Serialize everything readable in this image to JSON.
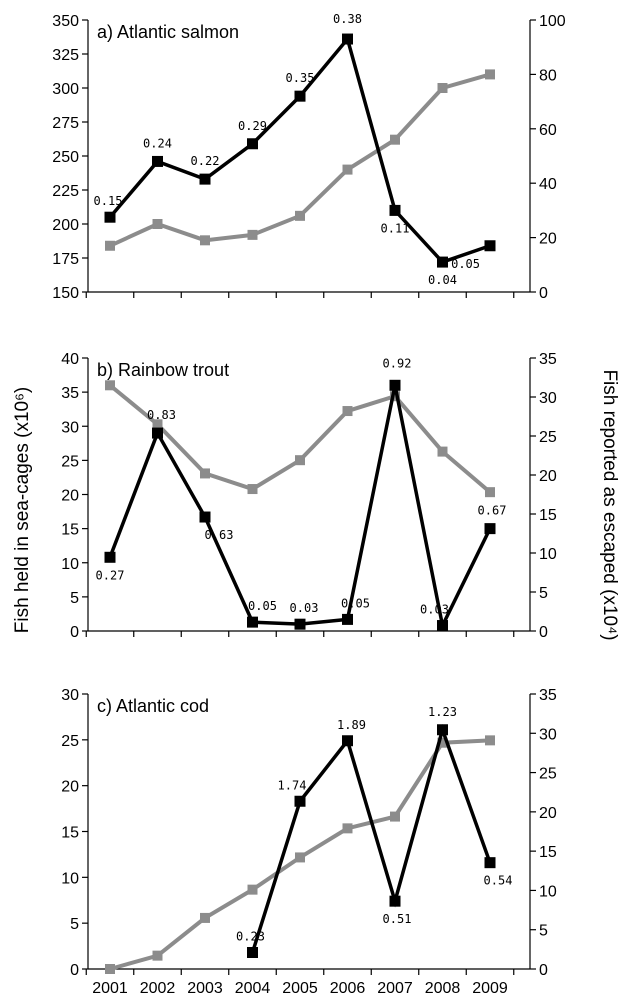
{
  "chart_data": [
    {
      "type": "line",
      "title": "a) Atlantic salmon",
      "x": [
        2001,
        2002,
        2003,
        2004,
        2005,
        2006,
        2007,
        2008,
        2009
      ],
      "ylim_left": [
        150,
        350
      ],
      "yticks_left": [
        150,
        175,
        200,
        225,
        250,
        275,
        300,
        325,
        350
      ],
      "ylim_right": [
        0,
        100
      ],
      "yticks_right": [
        0,
        20,
        40,
        60,
        80,
        100
      ],
      "series": [
        {
          "axis": "left",
          "color": "#000000",
          "marker": "square",
          "values": [
            205,
            246,
            233,
            259,
            294,
            336,
            210,
            172,
            184
          ],
          "labels": [
            "0.15",
            "0.24",
            "0.22",
            "0.29",
            "0.35",
            "0.38",
            "0.11",
            "0.04",
            "0.05"
          ]
        },
        {
          "axis": "right",
          "color": "#8c8c8c",
          "marker": "square",
          "values": [
            17,
            25,
            19,
            21,
            28,
            45,
            56,
            75,
            80
          ],
          "labels": []
        }
      ]
    },
    {
      "type": "line",
      "title": "b) Rainbow trout",
      "x": [
        2001,
        2002,
        2003,
        2004,
        2005,
        2006,
        2007,
        2008,
        2009
      ],
      "ylim_left": [
        0,
        40
      ],
      "yticks_left": [
        0,
        5,
        10,
        15,
        20,
        25,
        30,
        35,
        40
      ],
      "ylim_right": [
        0,
        35
      ],
      "yticks_right": [
        0,
        5,
        10,
        15,
        20,
        25,
        30,
        35
      ],
      "series": [
        {
          "axis": "left",
          "color": "#000000",
          "marker": "square",
          "values": [
            10.8,
            29,
            16.7,
            1.3,
            1.0,
            1.7,
            36,
            0.8,
            15
          ],
          "labels": [
            "0.27",
            "0.83",
            "0.63",
            "0.05",
            "0.03",
            "0.05",
            "0.92",
            "0.03",
            "0.67"
          ]
        },
        {
          "axis": "right",
          "color": "#8c8c8c",
          "marker": "square",
          "values": [
            31.5,
            26.5,
            20.2,
            18.2,
            21.9,
            28.2,
            30.1,
            23,
            17.8
          ],
          "labels": []
        }
      ]
    },
    {
      "type": "line",
      "title": "c) Atlantic cod",
      "x": [
        2001,
        2002,
        2003,
        2004,
        2005,
        2006,
        2007,
        2008,
        2009
      ],
      "ylim_left": [
        0,
        30
      ],
      "yticks_left": [
        0,
        5,
        10,
        15,
        20,
        25,
        30
      ],
      "ylim_right": [
        0,
        35
      ],
      "yticks_right": [
        0,
        5,
        10,
        15,
        20,
        25,
        30,
        35
      ],
      "xticks": [
        "2001",
        "2002",
        "2003",
        "2004",
        "2005",
        "2006",
        "2007",
        "2008",
        "2009"
      ],
      "series": [
        {
          "axis": "left",
          "color": "#000000",
          "marker": "square",
          "values": [
            null,
            null,
            null,
            1.8,
            18.3,
            24.9,
            7.4,
            26.1,
            11.6
          ],
          "labels": [
            "",
            "",
            "",
            "0.23",
            "1.74",
            "1.89",
            "0.51",
            "1.23",
            "0.54"
          ]
        },
        {
          "axis": "right",
          "color": "#8c8c8c",
          "marker": "square",
          "values": [
            0,
            1.7,
            6.5,
            10.1,
            14.2,
            17.9,
            19.4,
            28.8,
            29.1
          ],
          "labels": []
        }
      ]
    }
  ],
  "ylabel_left": "Fish held in sea-cages (x10⁶)",
  "ylabel_right": "Fish reported as escaped (x10⁴)"
}
